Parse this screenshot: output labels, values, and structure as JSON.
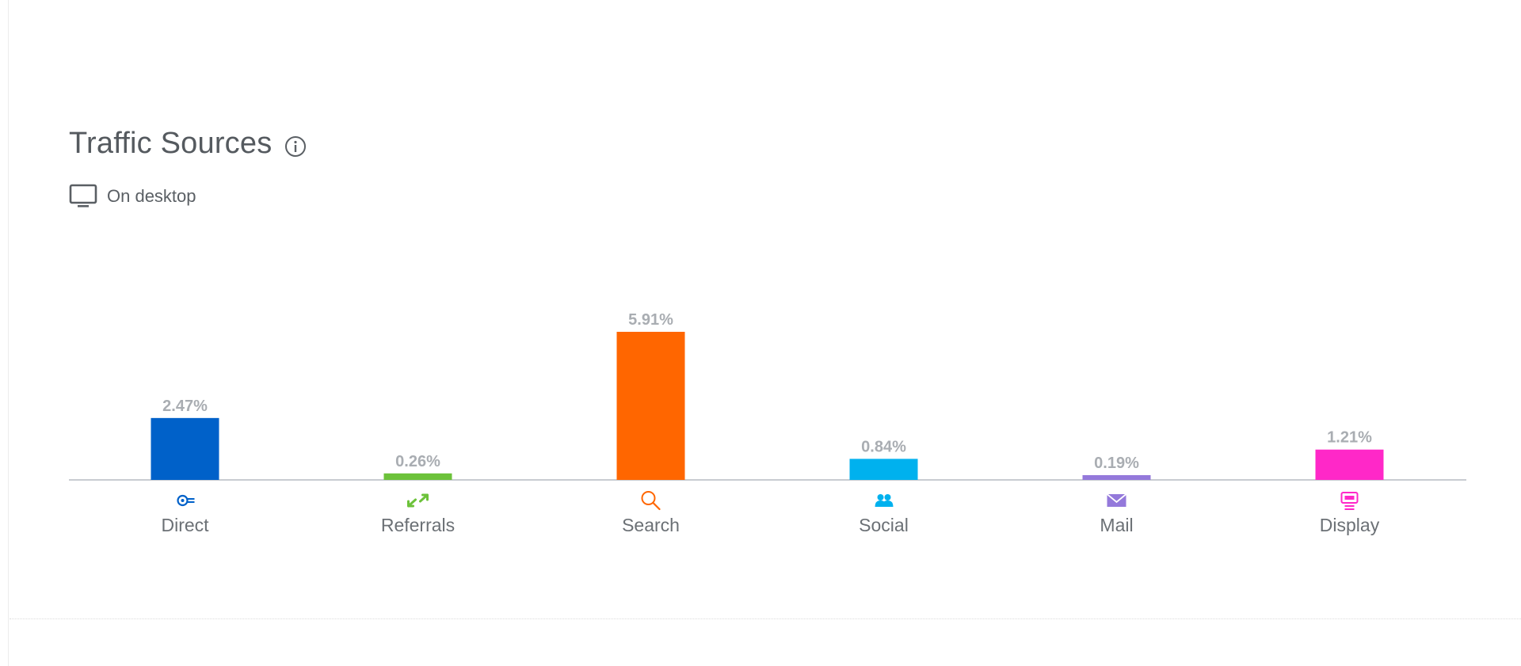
{
  "header": {
    "title": "Traffic Sources",
    "subtitle": "On desktop",
    "icons": {
      "info": "info-icon",
      "device": "desktop-icon"
    }
  },
  "chart_data": {
    "type": "bar",
    "categories": [
      "Direct",
      "Referrals",
      "Search",
      "Social",
      "Mail",
      "Display"
    ],
    "values": [
      2.47,
      0.26,
      5.91,
      0.84,
      0.19,
      1.21
    ],
    "value_labels": [
      "2.47%",
      "0.26%",
      "5.91%",
      "0.84%",
      "0.19%",
      "1.21%"
    ],
    "colors": [
      "#0061c9",
      "#6cc23a",
      "#ff6600",
      "#00b1ee",
      "#9479db",
      "#ff28c8"
    ],
    "category_icons": [
      "direct-icon",
      "referrals-icon",
      "search-icon",
      "social-icon",
      "mail-icon",
      "display-icon"
    ],
    "ylim": [
      0,
      5.91
    ],
    "grid": false,
    "legend": "none"
  }
}
